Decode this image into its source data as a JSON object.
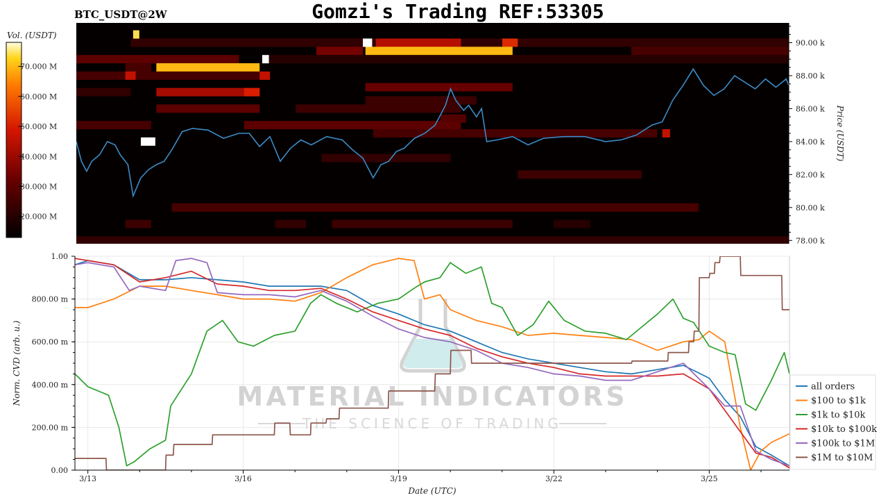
{
  "header": {
    "symbol": "BTC_USDT@2W",
    "title": "Gomzi's Trading REF:53305"
  },
  "watermark": {
    "brand": "MATERIAL INDICATORS",
    "tagline": "THE SCIENCE OF TRADING"
  },
  "colors": {
    "price_line": "#3a8cc8",
    "heatmap_bg": "#050000",
    "all_orders": "#1f77b4",
    "usd_100_1k": "#ff7f0e",
    "usd_1k_10k": "#2ca02c",
    "usd_10k_100k": "#d62728",
    "usd_100k_1m": "#9467bd",
    "usd_1m_10m": "#8c564b"
  },
  "chart_data": [
    {
      "type": "heatmap",
      "colorbar": {
        "label": "Vol. (USDT)",
        "ticks": [
          "20.000 M",
          "30.000 M",
          "40.000 M",
          "50.000 M",
          "60.000 M",
          "70.000 M"
        ],
        "range": [
          13,
          78
        ]
      },
      "y_axis": {
        "label": "Price (USDT)",
        "ticks": [
          "78.00 k",
          "80.00 k",
          "82.00 k",
          "84.00 k",
          "86.00 k",
          "88.00 k",
          "90.00 k"
        ],
        "ylim": [
          77.8,
          91.2
        ]
      },
      "x_range_days": [
        12.75,
        26.55
      ],
      "price_series": {
        "name": "price",
        "x": [
          12.75,
          12.85,
          12.95,
          13.05,
          13.2,
          13.35,
          13.5,
          13.6,
          13.75,
          13.85,
          14.0,
          14.15,
          14.3,
          14.45,
          14.6,
          14.8,
          15.0,
          15.3,
          15.6,
          15.9,
          16.1,
          16.3,
          16.5,
          16.7,
          16.9,
          17.1,
          17.3,
          17.6,
          17.9,
          18.1,
          18.3,
          18.5,
          18.65,
          18.8,
          18.95,
          19.1,
          19.3,
          19.5,
          19.7,
          19.9,
          20.0,
          20.1,
          20.25,
          20.35,
          20.5,
          20.6,
          20.7,
          20.9,
          21.2,
          21.5,
          21.8,
          22.2,
          22.6,
          23.0,
          23.3,
          23.6,
          23.9,
          24.1,
          24.3,
          24.5,
          24.7,
          24.9,
          25.1,
          25.3,
          25.5,
          25.7,
          25.9,
          26.1,
          26.3,
          26.5,
          26.55
        ],
        "y": [
          84.0,
          82.8,
          82.2,
          82.8,
          83.2,
          84.0,
          83.8,
          83.2,
          82.6,
          80.7,
          81.8,
          82.3,
          82.6,
          82.8,
          83.5,
          84.6,
          84.8,
          84.7,
          84.2,
          84.5,
          84.5,
          83.7,
          84.3,
          82.8,
          83.6,
          84.1,
          83.8,
          84.3,
          84.1,
          83.5,
          83.0,
          81.8,
          82.6,
          82.8,
          83.4,
          83.6,
          84.2,
          84.5,
          85.0,
          86.2,
          87.2,
          86.5,
          85.9,
          86.2,
          85.5,
          86.0,
          84.0,
          84.1,
          84.3,
          83.8,
          84.2,
          84.3,
          84.3,
          84.0,
          84.1,
          84.4,
          85.0,
          85.2,
          86.5,
          87.4,
          88.4,
          87.4,
          86.8,
          87.2,
          88.0,
          87.6,
          87.2,
          87.8,
          87.3,
          87.8,
          87.4
        ]
      },
      "heat_bands": [
        {
          "price": 90.0,
          "x0": 13.8,
          "x1": 26.55,
          "level": 22
        },
        {
          "price": 90.0,
          "x0": 18.55,
          "x1": 20.2,
          "level": 44
        },
        {
          "price": 90.0,
          "x0": 21.0,
          "x1": 21.3,
          "level": 52
        },
        {
          "price": 89.5,
          "x0": 18.35,
          "x1": 21.2,
          "level": 70
        },
        {
          "price": 89.5,
          "x0": 17.4,
          "x1": 18.3,
          "level": 34
        },
        {
          "price": 89.5,
          "x0": 23.5,
          "x1": 26.55,
          "level": 26
        },
        {
          "price": 89.0,
          "x0": 12.75,
          "x1": 15.9,
          "level": 30
        },
        {
          "price": 89.0,
          "x0": 16.4,
          "x1": 26.55,
          "level": 20
        },
        {
          "price": 88.5,
          "x0": 14.3,
          "x1": 16.3,
          "level": 70
        },
        {
          "price": 88.5,
          "x0": 13.7,
          "x1": 14.2,
          "level": 26
        },
        {
          "price": 88.0,
          "x0": 12.75,
          "x1": 16.5,
          "level": 26
        },
        {
          "price": 88.0,
          "x0": 13.7,
          "x1": 13.9,
          "level": 46
        },
        {
          "price": 88.0,
          "x0": 16.3,
          "x1": 16.5,
          "level": 46
        },
        {
          "price": 87.3,
          "x0": 18.35,
          "x1": 21.2,
          "level": 32
        },
        {
          "price": 87.0,
          "x0": 14.3,
          "x1": 16.3,
          "level": 42
        },
        {
          "price": 87.0,
          "x0": 16.0,
          "x1": 16.3,
          "level": 50
        },
        {
          "price": 87.0,
          "x0": 12.75,
          "x1": 13.8,
          "level": 22
        },
        {
          "price": 86.5,
          "x0": 18.35,
          "x1": 20.5,
          "level": 24
        },
        {
          "price": 86.0,
          "x0": 14.3,
          "x1": 16.3,
          "level": 30
        },
        {
          "price": 86.0,
          "x0": 17.0,
          "x1": 20.2,
          "level": 24
        },
        {
          "price": 85.4,
          "x0": 19.8,
          "x1": 20.3,
          "level": 28
        },
        {
          "price": 85.0,
          "x0": 12.75,
          "x1": 14.2,
          "level": 26
        },
        {
          "price": 85.0,
          "x0": 16.0,
          "x1": 20.2,
          "level": 30
        },
        {
          "price": 84.5,
          "x0": 18.5,
          "x1": 24.0,
          "level": 26
        },
        {
          "price": 84.5,
          "x0": 24.1,
          "x1": 24.25,
          "level": 46
        },
        {
          "price": 83.0,
          "x0": 17.5,
          "x1": 20.0,
          "level": 22
        },
        {
          "price": 82.0,
          "x0": 21.3,
          "x1": 23.7,
          "level": 24
        },
        {
          "price": 80.0,
          "x0": 14.6,
          "x1": 24.8,
          "level": 26
        },
        {
          "price": 79.0,
          "x0": 13.7,
          "x1": 14.2,
          "level": 24
        },
        {
          "price": 79.0,
          "x0": 16.6,
          "x1": 17.2,
          "level": 22
        },
        {
          "price": 79.0,
          "x0": 17.7,
          "x1": 21.2,
          "level": 24
        },
        {
          "price": 79.0,
          "x0": 22.0,
          "x1": 22.7,
          "level": 20
        },
        {
          "price": 78.0,
          "x0": 12.75,
          "x1": 26.55,
          "level": 22
        },
        {
          "price": 90.5,
          "x0": 13.85,
          "x1": 13.97,
          "level": 74
        },
        {
          "price": 90.0,
          "x0": 18.3,
          "x1": 18.48,
          "level": 78
        },
        {
          "price": 89.0,
          "x0": 16.35,
          "x1": 16.48,
          "level": 78
        },
        {
          "price": 84.0,
          "x0": 14.0,
          "x1": 14.28,
          "level": 78
        }
      ]
    },
    {
      "type": "line",
      "xlabel": "Date (UTC)",
      "ylabel": "Norm. CVD (arb. u.)",
      "ylim": [
        0,
        1
      ],
      "xlim": [
        12.75,
        26.55
      ],
      "y_ticks": [
        {
          "value": 0.0,
          "label": "0.00"
        },
        {
          "value": 0.2,
          "label": "200.00 m"
        },
        {
          "value": 0.4,
          "label": "400.00 m"
        },
        {
          "value": 0.6,
          "label": "600.00 m"
        },
        {
          "value": 0.8,
          "label": "800.00 m"
        },
        {
          "value": 1.0,
          "label": "1.00"
        }
      ],
      "x_ticks": [
        {
          "value": 13,
          "label": "3/13"
        },
        {
          "value": 16,
          "label": "3/16"
        },
        {
          "value": 19,
          "label": "3/19"
        },
        {
          "value": 22,
          "label": "3/22"
        },
        {
          "value": 25,
          "label": "3/25"
        }
      ],
      "series": [
        {
          "name": "all orders",
          "color": "#1f77b4",
          "x": [
            12.75,
            13.0,
            13.5,
            14.0,
            14.5,
            15.0,
            15.5,
            16.0,
            16.5,
            17.0,
            17.5,
            18.0,
            18.5,
            19.0,
            19.5,
            20.0,
            20.5,
            21.0,
            21.5,
            22.0,
            22.5,
            23.0,
            23.5,
            24.0,
            24.5,
            25.0,
            25.3,
            25.6,
            25.9,
            26.2,
            26.55
          ],
          "y": [
            0.96,
            0.98,
            0.96,
            0.89,
            0.89,
            0.9,
            0.89,
            0.88,
            0.86,
            0.86,
            0.86,
            0.84,
            0.77,
            0.73,
            0.68,
            0.65,
            0.6,
            0.55,
            0.52,
            0.5,
            0.48,
            0.46,
            0.45,
            0.47,
            0.49,
            0.43,
            0.33,
            0.25,
            0.11,
            0.07,
            0.02
          ]
        },
        {
          "name": "$100 to $1k",
          "color": "#ff7f0e",
          "x": [
            12.75,
            13.0,
            13.5,
            14.0,
            14.5,
            15.0,
            15.5,
            16.0,
            16.5,
            17.0,
            17.5,
            18.0,
            18.5,
            19.0,
            19.3,
            19.5,
            19.8,
            20.0,
            20.5,
            21.0,
            21.5,
            22.0,
            22.5,
            23.0,
            23.5,
            24.0,
            24.5,
            24.8,
            25.0,
            25.3,
            25.6,
            25.8,
            26.0,
            26.2,
            26.55
          ],
          "y": [
            0.76,
            0.76,
            0.8,
            0.86,
            0.86,
            0.84,
            0.82,
            0.8,
            0.8,
            0.79,
            0.83,
            0.9,
            0.96,
            0.99,
            0.98,
            0.8,
            0.82,
            0.75,
            0.7,
            0.67,
            0.63,
            0.64,
            0.63,
            0.62,
            0.61,
            0.56,
            0.6,
            0.61,
            0.65,
            0.6,
            0.2,
            0.0,
            0.09,
            0.13,
            0.17
          ]
        },
        {
          "name": "$1k to $10k",
          "color": "#2ca02c",
          "x": [
            12.75,
            13.0,
            13.2,
            13.4,
            13.6,
            13.75,
            13.9,
            14.2,
            14.5,
            14.6,
            15.0,
            15.3,
            15.6,
            15.9,
            16.2,
            16.6,
            17.0,
            17.3,
            17.5,
            17.8,
            18.2,
            18.6,
            19.0,
            19.3,
            19.5,
            19.8,
            20.0,
            20.3,
            20.6,
            20.8,
            21.0,
            21.3,
            21.6,
            21.9,
            22.2,
            22.6,
            23.0,
            23.4,
            23.7,
            24.0,
            24.3,
            24.5,
            24.7,
            25.0,
            25.3,
            25.5,
            25.7,
            25.9,
            26.2,
            26.45,
            26.55
          ],
          "y": [
            0.45,
            0.39,
            0.37,
            0.35,
            0.2,
            0.02,
            0.04,
            0.1,
            0.14,
            0.3,
            0.45,
            0.65,
            0.7,
            0.6,
            0.58,
            0.63,
            0.65,
            0.78,
            0.82,
            0.78,
            0.74,
            0.78,
            0.8,
            0.85,
            0.88,
            0.9,
            0.97,
            0.92,
            0.95,
            0.78,
            0.76,
            0.63,
            0.68,
            0.79,
            0.7,
            0.65,
            0.64,
            0.61,
            0.67,
            0.73,
            0.8,
            0.71,
            0.69,
            0.58,
            0.55,
            0.54,
            0.31,
            0.28,
            0.42,
            0.55,
            0.45
          ]
        },
        {
          "name": "$10k to $100k",
          "color": "#d62728",
          "x": [
            12.75,
            13.0,
            13.5,
            14.0,
            14.5,
            15.0,
            15.5,
            16.0,
            16.5,
            17.0,
            17.5,
            18.0,
            18.5,
            19.0,
            19.5,
            20.0,
            20.5,
            21.0,
            21.5,
            22.0,
            22.5,
            23.0,
            23.5,
            24.0,
            24.5,
            25.0,
            25.3,
            25.6,
            25.9,
            26.2,
            26.55
          ],
          "y": [
            0.99,
            0.98,
            0.96,
            0.88,
            0.9,
            0.93,
            0.87,
            0.86,
            0.84,
            0.84,
            0.85,
            0.8,
            0.74,
            0.7,
            0.66,
            0.63,
            0.57,
            0.53,
            0.5,
            0.48,
            0.45,
            0.44,
            0.44,
            0.44,
            0.45,
            0.38,
            0.28,
            0.18,
            0.08,
            0.06,
            0.01
          ]
        },
        {
          "name": "$100k to $1M",
          "color": "#9467bd",
          "x": [
            12.75,
            13.0,
            13.5,
            13.8,
            14.0,
            14.5,
            14.7,
            15.0,
            15.3,
            15.5,
            16.0,
            16.5,
            17.0,
            17.5,
            18.0,
            18.5,
            19.0,
            19.5,
            20.0,
            20.5,
            21.0,
            21.5,
            22.0,
            22.5,
            23.0,
            23.5,
            24.0,
            24.5,
            25.0,
            25.3,
            25.6,
            25.9,
            26.2,
            26.55
          ],
          "y": [
            0.96,
            0.97,
            0.95,
            0.84,
            0.86,
            0.84,
            0.98,
            0.99,
            0.97,
            0.83,
            0.82,
            0.82,
            0.81,
            0.84,
            0.79,
            0.72,
            0.66,
            0.62,
            0.6,
            0.56,
            0.5,
            0.48,
            0.45,
            0.44,
            0.42,
            0.42,
            0.46,
            0.5,
            0.38,
            0.3,
            0.3,
            0.09,
            0.05,
            0.02
          ]
        },
        {
          "name": "$1M to $10M",
          "color": "#8c564b",
          "x": [
            12.75,
            13.35,
            13.36,
            14.5,
            14.51,
            14.65,
            14.66,
            15.4,
            15.41,
            16.6,
            16.61,
            16.9,
            16.91,
            17.3,
            17.31,
            17.6,
            17.61,
            17.85,
            17.86,
            18.8,
            18.81,
            19.7,
            19.71,
            20.0,
            20.01,
            20.4,
            20.41,
            23.5,
            23.51,
            24.2,
            24.21,
            24.6,
            24.61,
            24.7,
            24.71,
            24.8,
            24.81,
            25.0,
            25.01,
            25.1,
            25.11,
            25.2,
            25.21,
            25.6,
            25.61,
            26.4,
            26.41,
            26.55
          ],
          "y": [
            0.055,
            0.055,
            0.0,
            0.0,
            0.07,
            0.07,
            0.12,
            0.12,
            0.165,
            0.165,
            0.22,
            0.22,
            0.165,
            0.165,
            0.22,
            0.22,
            0.24,
            0.24,
            0.29,
            0.29,
            0.37,
            0.37,
            0.45,
            0.45,
            0.56,
            0.56,
            0.5,
            0.5,
            0.51,
            0.51,
            0.55,
            0.55,
            0.6,
            0.6,
            0.65,
            0.65,
            0.9,
            0.9,
            0.92,
            0.92,
            0.97,
            0.97,
            1.0,
            1.0,
            0.91,
            0.91,
            0.75,
            0.75
          ]
        }
      ]
    }
  ]
}
